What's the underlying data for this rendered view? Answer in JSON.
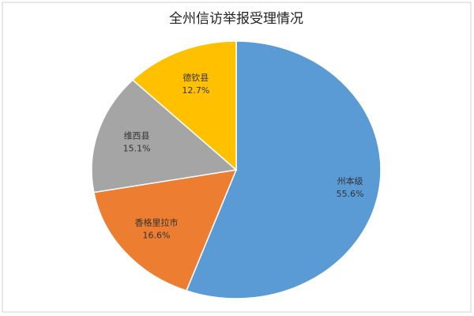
{
  "chart_data": {
    "type": "pie",
    "title": "全州信访举报受理情况",
    "categories": [
      "州本级",
      "香格里拉市",
      "维西县",
      "德钦县"
    ],
    "values": [
      55.6,
      16.6,
      15.1,
      12.7
    ],
    "value_labels": [
      "55.6%",
      "16.6%",
      "15.1%",
      "12.7%"
    ],
    "colors": [
      "#5b9bd5",
      "#ed7d31",
      "#a5a5a5",
      "#ffc000"
    ]
  }
}
